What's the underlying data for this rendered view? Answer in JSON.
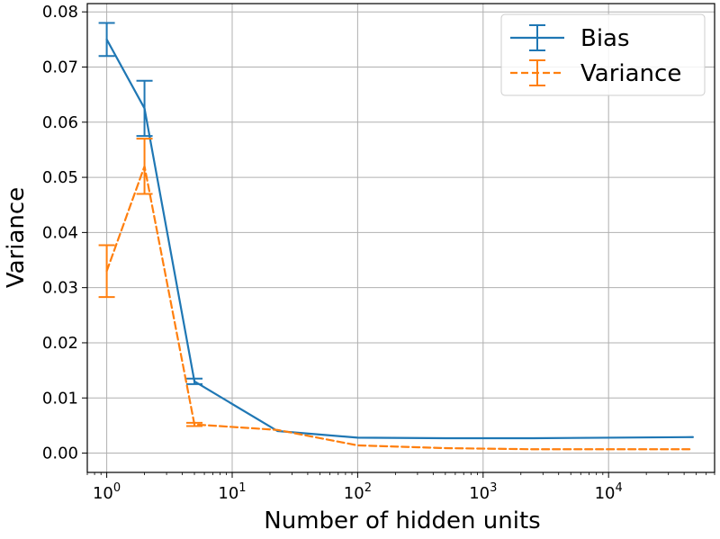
{
  "chart_data": {
    "type": "line",
    "xlabel": "Number of hidden units",
    "ylabel": "Variance",
    "xscale": "log",
    "xlim": [
      0.7,
      70000
    ],
    "ylim": [
      -0.0035,
      0.0815
    ],
    "grid": true,
    "legend_placement": "top-right",
    "x_ticks": [
      {
        "value": 1,
        "base": "10",
        "exp": "0"
      },
      {
        "value": 10,
        "base": "10",
        "exp": "1"
      },
      {
        "value": 100,
        "base": "10",
        "exp": "2"
      },
      {
        "value": 1000,
        "base": "10",
        "exp": "3"
      },
      {
        "value": 10000,
        "base": "10",
        "exp": "4"
      }
    ],
    "y_ticks": [
      {
        "value": 0.0,
        "label": "0.00"
      },
      {
        "value": 0.01,
        "label": "0.01"
      },
      {
        "value": 0.02,
        "label": "0.02"
      },
      {
        "value": 0.03,
        "label": "0.03"
      },
      {
        "value": 0.04,
        "label": "0.04"
      },
      {
        "value": 0.05,
        "label": "0.05"
      },
      {
        "value": 0.06,
        "label": "0.06"
      },
      {
        "value": 0.07,
        "label": "0.07"
      },
      {
        "value": 0.08,
        "label": "0.08"
      }
    ],
    "series": [
      {
        "name": "Bias",
        "color": "#1f77b4",
        "dashed": false,
        "x": [
          1,
          2,
          5,
          23,
          100,
          500,
          2500,
          47000
        ],
        "y": [
          0.075,
          0.0625,
          0.013,
          0.004,
          0.0028,
          0.0027,
          0.0027,
          0.0029
        ],
        "err": [
          0.003,
          0.005,
          0.0005,
          0.0,
          0.0,
          0.0,
          0.0,
          0.0
        ]
      },
      {
        "name": "Variance",
        "color": "#ff7f0e",
        "dashed": true,
        "x": [
          1,
          2,
          5,
          23,
          100,
          500,
          2500,
          47000
        ],
        "y": [
          0.033,
          0.052,
          0.0052,
          0.0042,
          0.0014,
          0.0009,
          0.0007,
          0.0007
        ],
        "err": [
          0.0047,
          0.005,
          0.0003,
          0.0,
          0.0,
          0.0,
          0.0,
          0.0
        ]
      }
    ]
  }
}
